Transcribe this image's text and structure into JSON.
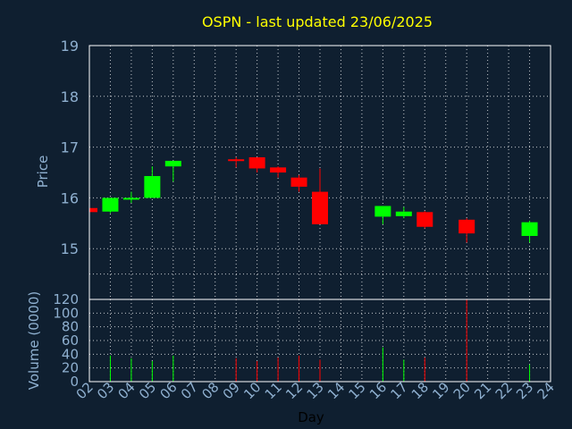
{
  "chart_data": [
    {
      "type": "candlestick",
      "title": "OSPN - last updated 23/06/2025",
      "ylabel": "Price",
      "ylim": [
        14.0,
        19.0
      ],
      "yticks": [
        15,
        16,
        17,
        18,
        19
      ],
      "grid": true,
      "colors": {
        "up": "#00ff00",
        "down": "#ff0000"
      },
      "x": [
        "02",
        "03",
        "04",
        "05",
        "06",
        "09",
        "10",
        "11",
        "12",
        "13",
        "16",
        "17",
        "18",
        "20",
        "23"
      ],
      "open": [
        15.8,
        15.73,
        15.98,
        16.0,
        16.62,
        16.76,
        16.8,
        16.6,
        16.4,
        16.12,
        15.63,
        15.64,
        15.72,
        15.57,
        15.25
      ],
      "close": [
        15.72,
        16.0,
        16.0,
        16.43,
        16.73,
        16.75,
        16.58,
        16.5,
        16.22,
        15.48,
        15.84,
        15.73,
        15.43,
        15.3,
        15.52
      ],
      "high": [
        15.8,
        16.0,
        16.12,
        16.62,
        16.73,
        16.8,
        16.8,
        16.62,
        16.45,
        16.58,
        15.84,
        15.82,
        15.74,
        15.6,
        15.55
      ],
      "low": [
        15.7,
        15.7,
        15.9,
        16.0,
        16.32,
        16.6,
        16.5,
        16.4,
        16.12,
        15.48,
        15.48,
        15.6,
        15.4,
        15.12,
        15.12
      ]
    },
    {
      "type": "bar",
      "ylabel": "Volume (0000)",
      "xlabel": "Day",
      "ylim": [
        0,
        120
      ],
      "yticks": [
        0,
        20,
        40,
        60,
        80,
        100,
        120
      ],
      "grid": true,
      "x_axis_ticks": [
        "02",
        "03",
        "04",
        "05",
        "06",
        "07",
        "08",
        "09",
        "10",
        "11",
        "12",
        "13",
        "14",
        "15",
        "16",
        "17",
        "18",
        "19",
        "20",
        "21",
        "22",
        "23",
        "24"
      ],
      "x": [
        "02",
        "03",
        "04",
        "05",
        "06",
        "09",
        "10",
        "11",
        "12",
        "13",
        "16",
        "17",
        "18",
        "20",
        "23"
      ],
      "values": [
        0,
        38,
        34,
        30,
        38,
        34,
        30,
        35,
        38,
        32,
        50,
        32,
        35,
        120,
        25
      ],
      "colors_by_direction": [
        "down",
        "up",
        "up",
        "up",
        "up",
        "down",
        "down",
        "down",
        "down",
        "down",
        "up",
        "up",
        "down",
        "down",
        "up"
      ]
    }
  ]
}
